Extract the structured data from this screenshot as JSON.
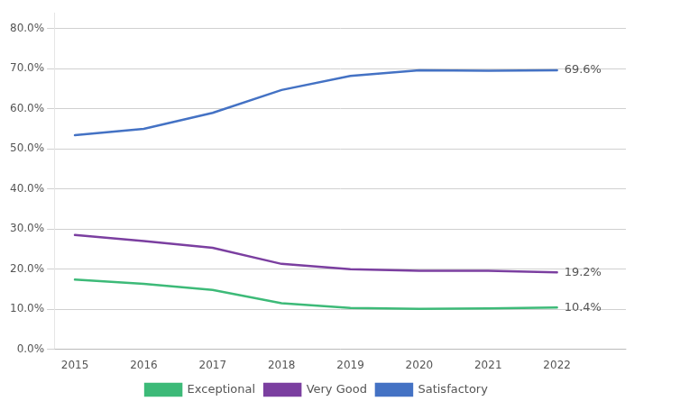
{
  "chart_data": {
    "type": "line",
    "x": [
      2015,
      2016,
      2017,
      2018,
      2019,
      2020,
      2021,
      2022
    ],
    "series": [
      {
        "name": "Exceptional",
        "color": "#3dba78",
        "values": [
          0.174,
          0.163,
          0.148,
          0.115,
          0.103,
          0.101,
          0.102,
          0.104
        ]
      },
      {
        "name": "Very Good",
        "color": "#7B3FA0",
        "values": [
          0.285,
          0.27,
          0.253,
          0.213,
          0.2,
          0.196,
          0.196,
          0.192
        ]
      },
      {
        "name": "Satisfactory",
        "color": "#4472C4",
        "values": [
          0.534,
          0.55,
          0.59,
          0.647,
          0.682,
          0.696,
          0.695,
          0.696
        ]
      }
    ],
    "xlim": [
      2014.7,
      2023.0
    ],
    "xticks": [
      2015,
      2016,
      2017,
      2018,
      2019,
      2020,
      2021,
      2022
    ],
    "ylim": [
      0.0,
      0.84
    ],
    "yticks": [
      {
        "value": 0.0,
        "label": "0.0%"
      },
      {
        "value": 0.1,
        "label": "10.0%"
      },
      {
        "value": 0.2,
        "label": "20.0%"
      },
      {
        "value": 0.3,
        "label": "30.0%"
      },
      {
        "value": 0.4,
        "label": "40.0%"
      },
      {
        "value": 0.5,
        "label": "50.0%"
      },
      {
        "value": 0.6,
        "label": "60.0%"
      },
      {
        "value": 0.7,
        "label": "70.0%"
      },
      {
        "value": 0.8,
        "label": "80.0%"
      }
    ],
    "annotations": [
      {
        "text": "69.6%",
        "x": 2022,
        "y": 0.696
      },
      {
        "text": "19.2%",
        "x": 2022,
        "y": 0.192
      },
      {
        "text": "10.4%",
        "x": 2022,
        "y": 0.104
      }
    ],
    "grid": "y",
    "legend": "bottom"
  }
}
